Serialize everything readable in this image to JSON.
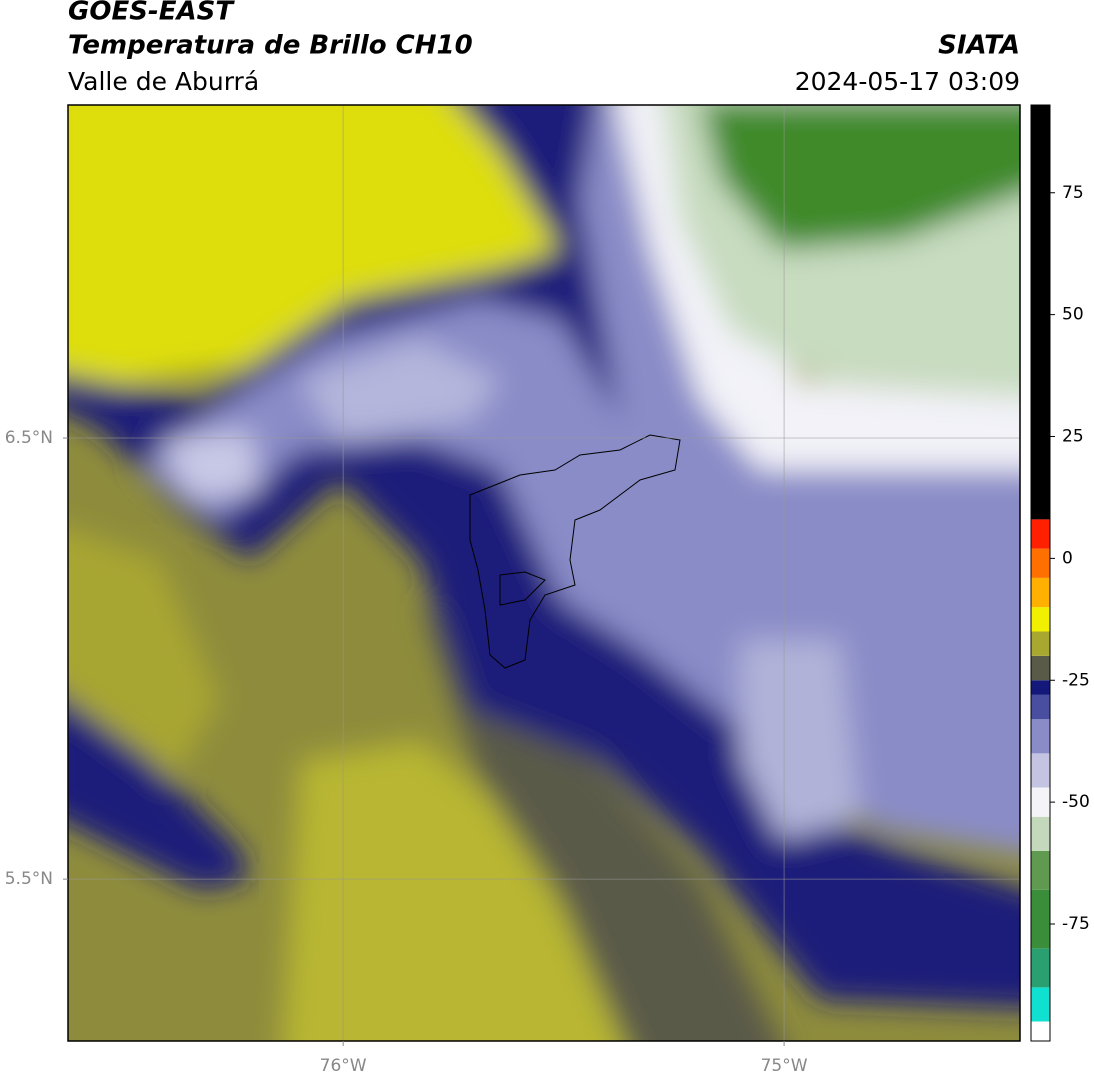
{
  "header": {
    "satellite": "GOES-EAST",
    "product": "Temperatura de Brillo CH10",
    "region": "Valle de Aburrá",
    "agency": "SIATA",
    "timestamp": "2024-05-17 03:09"
  },
  "map": {
    "lonlim": [
      -76.624,
      -74.465
    ],
    "latlim": [
      5.133,
      7.255
    ],
    "lonticks": [
      {
        "value": -76,
        "label": "76°W"
      },
      {
        "value": -75,
        "label": "75°W"
      }
    ],
    "latticks": [
      {
        "value": 6.5,
        "label": "6.5°N"
      },
      {
        "value": 5.5,
        "label": "5.5°N"
      }
    ],
    "grid": true
  },
  "colorbar": {
    "lim": [
      -99,
      93
    ],
    "ticks": [
      75,
      50,
      25,
      0,
      -25,
      -50,
      -75
    ],
    "segments": [
      {
        "from": -99,
        "to": -95,
        "color": "#ffffff"
      },
      {
        "from": -95,
        "to": -88,
        "color": "#10e0d0"
      },
      {
        "from": -88,
        "to": -80,
        "color": "#2aa070"
      },
      {
        "from": -80,
        "to": -68,
        "color": "#3a8e3a"
      },
      {
        "from": -68,
        "to": -60,
        "color": "#5f9a50"
      },
      {
        "from": -60,
        "to": -53,
        "color": "#c4d8bc"
      },
      {
        "from": -53,
        "to": -47,
        "color": "#f4f4f8"
      },
      {
        "from": -47,
        "to": -40,
        "color": "#c4c4e2"
      },
      {
        "from": -40,
        "to": -33,
        "color": "#8a8cc8"
      },
      {
        "from": -33,
        "to": -28,
        "color": "#4a4ea0"
      },
      {
        "from": -28,
        "to": -25,
        "color": "#14187a"
      },
      {
        "from": -25,
        "to": -20,
        "color": "#5a5a48"
      },
      {
        "from": -20,
        "to": -15,
        "color": "#a8a830"
      },
      {
        "from": -15,
        "to": -10,
        "color": "#f0f000"
      },
      {
        "from": -10,
        "to": -4,
        "color": "#ffb000"
      },
      {
        "from": -4,
        "to": 2,
        "color": "#ff7000"
      },
      {
        "from": 2,
        "to": 8,
        "color": "#ff2000"
      },
      {
        "from": 8,
        "to": 93,
        "color": "#000000"
      }
    ]
  }
}
